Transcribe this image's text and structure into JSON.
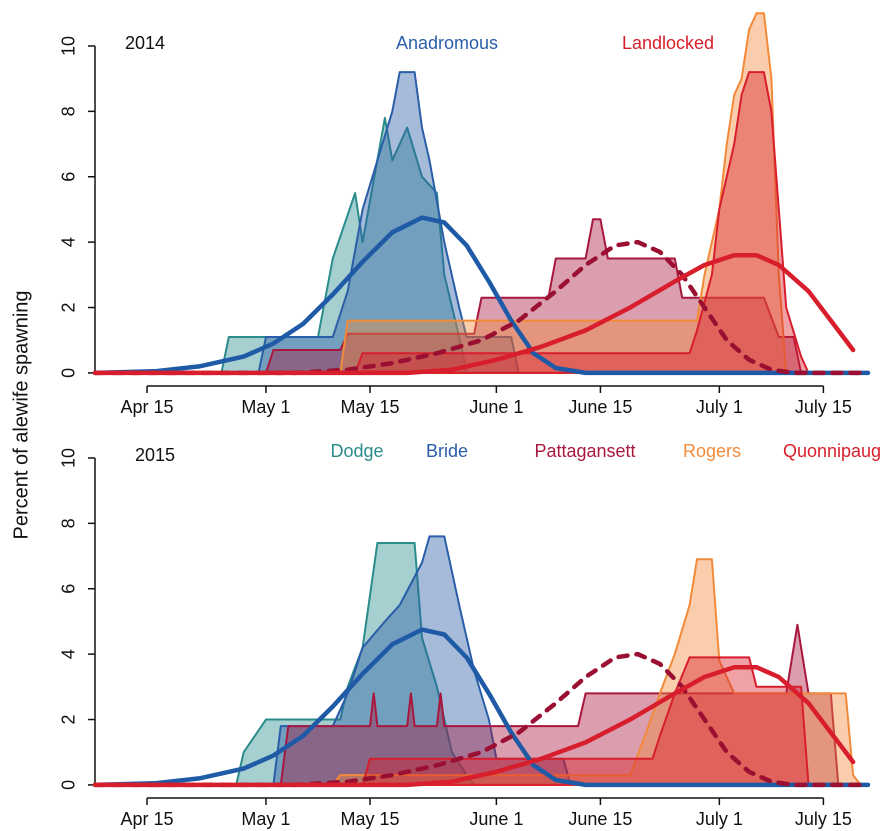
{
  "chart_data": [
    {
      "type": "area",
      "title": "2014",
      "ylabel": "Percent of alewife spawning",
      "xlim": [
        98,
        202
      ],
      "ylim": [
        -0.4,
        11.1
      ],
      "xticks": [
        {
          "value": 105,
          "label": "Apr 15"
        },
        {
          "value": 121,
          "label": "May 1"
        },
        {
          "value": 135,
          "label": "May 15"
        },
        {
          "value": 152,
          "label": "June 1"
        },
        {
          "value": 166,
          "label": "June 15"
        },
        {
          "value": 182,
          "label": "July 1"
        },
        {
          "value": 196,
          "label": "July 15"
        }
      ],
      "yticks": [
        0,
        2,
        4,
        6,
        8,
        10
      ],
      "annotations": [
        {
          "text": "Anadromous",
          "color": "#2a5ea8"
        },
        {
          "text": "Landlocked",
          "color": "#d81e2c"
        }
      ],
      "series": [
        {
          "color": "#2b8c8c",
          "x": [
            115,
            116,
            128,
            130,
            133,
            134,
            137,
            138,
            140,
            142,
            144,
            145,
            147,
            148
          ],
          "values": [
            0,
            1.1,
            1.1,
            3.5,
            5.5,
            4,
            7.8,
            6.5,
            7.5,
            6,
            5.5,
            3,
            1.1,
            0
          ]
        },
        {
          "color": "#2a5ea8",
          "x": [
            120,
            121,
            130,
            132,
            134,
            136,
            138,
            139,
            141,
            142,
            143,
            145,
            147,
            148,
            154,
            155
          ],
          "values": [
            0,
            1.1,
            1.1,
            2.5,
            5,
            6.5,
            8,
            9.2,
            9.2,
            7.5,
            6.5,
            4,
            2,
            1.1,
            1.1,
            0
          ]
        },
        {
          "color": "#a8173d",
          "x": [
            121,
            122,
            131,
            132,
            149,
            150,
            159,
            160,
            164,
            165,
            166,
            167,
            176,
            177,
            188,
            190,
            192,
            193
          ],
          "values": [
            0,
            0.7,
            0.7,
            1.2,
            1.2,
            2.3,
            2.3,
            3.5,
            3.5,
            4.7,
            4.7,
            3.5,
            3.5,
            2.3,
            2.3,
            1.1,
            1.1,
            0
          ]
        },
        {
          "color": "#f28a3a",
          "x": [
            131,
            132,
            179,
            180,
            182,
            183,
            184,
            185,
            186,
            187,
            188,
            189,
            190,
            191
          ],
          "values": [
            0,
            1.6,
            1.6,
            3,
            5,
            7,
            8.5,
            9,
            10.5,
            11,
            11,
            9,
            3,
            0
          ]
        },
        {
          "color": "#d81e2c",
          "x": [
            133,
            134,
            178,
            179,
            181,
            182,
            184,
            185,
            186,
            188,
            189,
            190,
            191,
            193,
            194
          ],
          "values": [
            0,
            0.6,
            0.6,
            1.3,
            3,
            5,
            7,
            8.5,
            9.2,
            9.2,
            8,
            5,
            2,
            0.5,
            0
          ]
        }
      ],
      "curves": [
        {
          "color": "#1f5aa6",
          "dashed": false,
          "x": [
            98,
            106,
            112,
            118,
            122,
            126,
            130,
            134,
            138,
            142,
            145,
            148,
            151,
            154,
            157,
            160,
            164,
            202
          ],
          "values": [
            0,
            0.05,
            0.2,
            0.5,
            0.9,
            1.5,
            2.4,
            3.4,
            4.3,
            4.75,
            4.6,
            3.9,
            2.8,
            1.6,
            0.6,
            0.15,
            0,
            0
          ]
        },
        {
          "color": "#9b1032",
          "dashed": true,
          "x": [
            98,
            125,
            132,
            138,
            144,
            150,
            155,
            160,
            164,
            168,
            171,
            174,
            177,
            180,
            183,
            186,
            189,
            192,
            202
          ],
          "values": [
            0,
            0,
            0.1,
            0.3,
            0.6,
            1.0,
            1.6,
            2.5,
            3.3,
            3.9,
            4.0,
            3.7,
            3.0,
            2.0,
            1.0,
            0.4,
            0.1,
            0,
            0
          ]
        },
        {
          "color": "#d81e2c",
          "dashed": false,
          "x": [
            98,
            140,
            146,
            152,
            158,
            164,
            170,
            176,
            180,
            184,
            187,
            190,
            194,
            198,
            200
          ],
          "values": [
            0,
            0,
            0.1,
            0.4,
            0.8,
            1.3,
            2.0,
            2.8,
            3.3,
            3.6,
            3.6,
            3.3,
            2.5,
            1.3,
            0.7
          ]
        }
      ]
    },
    {
      "type": "area",
      "title": "2015",
      "xlim": [
        98,
        202
      ],
      "ylim": [
        -0.4,
        11.1
      ],
      "xticks": [
        {
          "value": 105,
          "label": "Apr 15"
        },
        {
          "value": 121,
          "label": "May 1"
        },
        {
          "value": 135,
          "label": "May 15"
        },
        {
          "value": 152,
          "label": "June 1"
        },
        {
          "value": 166,
          "label": "June 15"
        },
        {
          "value": 182,
          "label": "July 1"
        },
        {
          "value": 196,
          "label": "July 15"
        }
      ],
      "yticks": [
        0,
        2,
        4,
        6,
        8,
        10
      ],
      "series": [
        {
          "name": "Dodge",
          "color": "#2b8c8c",
          "x": [
            117,
            118,
            121,
            122,
            131,
            132,
            134,
            136,
            141,
            142,
            144,
            146,
            148,
            149
          ],
          "values": [
            0,
            1,
            2.0,
            2.0,
            2.0,
            3,
            4.2,
            7.4,
            7.4,
            4.5,
            3,
            1,
            0.3,
            0
          ]
        },
        {
          "name": "Bride",
          "color": "#2a5ea8",
          "x": [
            122,
            123,
            130,
            132,
            134,
            137,
            139,
            142,
            143,
            145,
            147,
            149,
            151,
            152,
            161,
            162
          ],
          "values": [
            0,
            1.8,
            1.8,
            2.8,
            4.2,
            5,
            5.5,
            6.8,
            7.6,
            7.6,
            5.5,
            3.5,
            2,
            0.8,
            0.8,
            0
          ]
        },
        {
          "name": "Pattagansett",
          "color": "#a8173d",
          "x": [
            123,
            124,
            135,
            135.5,
            136,
            140,
            140.5,
            141,
            144,
            144.5,
            145,
            163,
            164,
            191,
            192.5,
            194,
            197,
            198
          ],
          "values": [
            0,
            1.8,
            1.8,
            2.8,
            1.8,
            1.8,
            2.8,
            1.8,
            1.8,
            2.8,
            1.8,
            1.8,
            2.8,
            2.8,
            4.9,
            2.8,
            2.8,
            0
          ]
        },
        {
          "name": "Rogers",
          "color": "#f28a3a",
          "x": [
            130,
            131,
            170,
            172,
            174,
            176,
            178,
            179,
            181,
            182,
            184,
            199,
            200,
            201
          ],
          "values": [
            0,
            0.3,
            0.3,
            1.5,
            2.8,
            4,
            5.5,
            6.9,
            6.9,
            3.8,
            2.8,
            2.8,
            0.3,
            0
          ]
        },
        {
          "name": "Quonnipaug",
          "color": "#d81e2c",
          "x": [
            134,
            135,
            173,
            174,
            176,
            178,
            186,
            187,
            193,
            194
          ],
          "values": [
            0,
            0.8,
            0.8,
            1.5,
            2.8,
            3.9,
            3.9,
            3,
            3,
            0
          ]
        }
      ],
      "curves": [
        {
          "color": "#1f5aa6",
          "dashed": false,
          "x": [
            98,
            106,
            112,
            118,
            122,
            126,
            130,
            134,
            138,
            142,
            145,
            148,
            151,
            154,
            157,
            160,
            164,
            202
          ],
          "values": [
            0,
            0.05,
            0.2,
            0.5,
            0.9,
            1.5,
            2.4,
            3.4,
            4.3,
            4.75,
            4.6,
            3.9,
            2.8,
            1.6,
            0.6,
            0.15,
            0,
            0
          ]
        },
        {
          "color": "#9b1032",
          "dashed": true,
          "x": [
            98,
            125,
            132,
            138,
            144,
            150,
            155,
            160,
            164,
            168,
            171,
            174,
            177,
            180,
            183,
            186,
            189,
            192,
            202
          ],
          "values": [
            0,
            0,
            0.1,
            0.3,
            0.6,
            1.0,
            1.6,
            2.5,
            3.3,
            3.9,
            4.0,
            3.7,
            3.0,
            2.0,
            1.0,
            0.4,
            0.1,
            0,
            0
          ]
        },
        {
          "color": "#d81e2c",
          "dashed": false,
          "x": [
            98,
            140,
            146,
            152,
            158,
            164,
            170,
            176,
            180,
            184,
            187,
            190,
            194,
            198,
            200
          ],
          "values": [
            0,
            0,
            0.1,
            0.4,
            0.8,
            1.3,
            2.0,
            2.8,
            3.3,
            3.6,
            3.6,
            3.3,
            2.5,
            1.3,
            0.7
          ]
        }
      ]
    }
  ]
}
